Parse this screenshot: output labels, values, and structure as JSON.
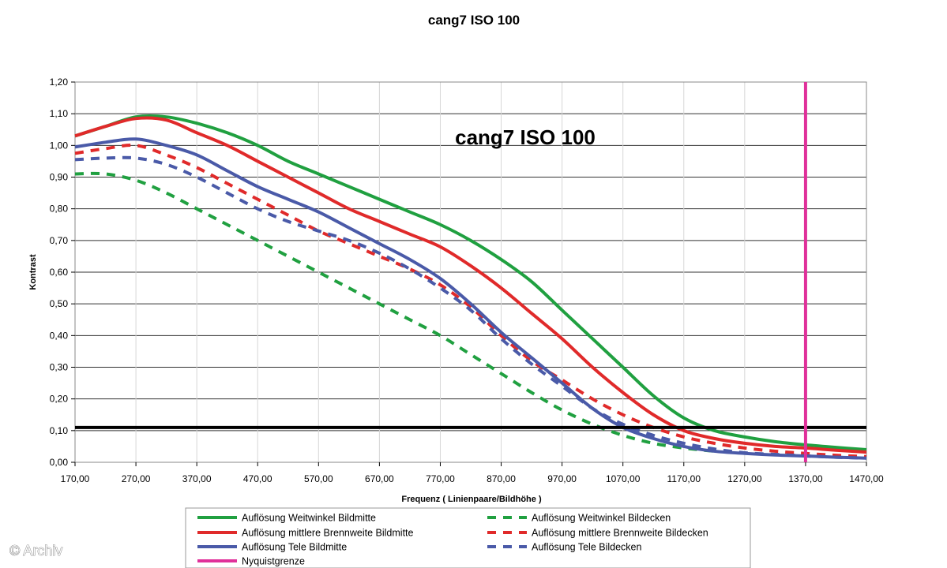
{
  "chart_data": {
    "type": "line",
    "title": "cang7 ISO 100",
    "inner_title": "cang7 ISO 100",
    "xlabel": "Frequenz ( Linienpaare/Bildhöhe )",
    "ylabel": "Kontrast",
    "xlim": [
      170,
      1470
    ],
    "ylim": [
      0,
      1.2
    ],
    "x_ticks": [
      "170,00",
      "270,00",
      "370,00",
      "470,00",
      "570,00",
      "670,00",
      "770,00",
      "870,00",
      "970,00",
      "1070,00",
      "1170,00",
      "1270,00",
      "1370,00",
      "1470,00"
    ],
    "y_ticks": [
      "0,00",
      "0,10",
      "0,20",
      "0,30",
      "0,40",
      "0,50",
      "0,60",
      "0,70",
      "0,80",
      "0,90",
      "1,00",
      "1,10",
      "1,20"
    ],
    "grid": "horizontal",
    "legend_position": "bottom",
    "threshold": {
      "y": 0.11,
      "color": "#000000"
    },
    "nyquist": {
      "name": "Nyquistgrenze",
      "x": 1370,
      "color": "#e0309a"
    },
    "series": [
      {
        "name": "Auflösung Weitwinkel Bildmitte",
        "color": "#20a040",
        "dash": false,
        "x": [
          170,
          220,
          270,
          320,
          370,
          420,
          470,
          520,
          570,
          620,
          670,
          720,
          770,
          820,
          870,
          920,
          970,
          1020,
          1070,
          1120,
          1170,
          1220,
          1270,
          1320,
          1370,
          1420,
          1470
        ],
        "y": [
          1.03,
          1.06,
          1.09,
          1.09,
          1.07,
          1.04,
          1.0,
          0.95,
          0.91,
          0.87,
          0.83,
          0.79,
          0.75,
          0.7,
          0.64,
          0.57,
          0.48,
          0.39,
          0.3,
          0.21,
          0.14,
          0.1,
          0.08,
          0.065,
          0.055,
          0.047,
          0.04
        ]
      },
      {
        "name": "Auflösung Weitwinkel Bildecken",
        "color": "#20a040",
        "dash": true,
        "x": [
          170,
          220,
          270,
          320,
          370,
          420,
          470,
          520,
          570,
          620,
          670,
          720,
          770,
          820,
          870,
          920,
          970,
          1020,
          1070,
          1120,
          1170,
          1220
        ],
        "y": [
          0.91,
          0.91,
          0.89,
          0.85,
          0.8,
          0.75,
          0.7,
          0.65,
          0.6,
          0.55,
          0.5,
          0.45,
          0.4,
          0.34,
          0.28,
          0.22,
          0.165,
          0.12,
          0.085,
          0.06,
          0.045,
          0.035
        ]
      },
      {
        "name": "Auflösung mittlere Brennweite Bildmitte",
        "color": "#e02a2a",
        "dash": false,
        "x": [
          170,
          220,
          270,
          320,
          370,
          420,
          470,
          520,
          570,
          620,
          670,
          720,
          770,
          820,
          870,
          920,
          970,
          1020,
          1070,
          1120,
          1170,
          1220,
          1270,
          1320,
          1370,
          1420,
          1470
        ],
        "y": [
          1.03,
          1.06,
          1.085,
          1.08,
          1.04,
          1.0,
          0.95,
          0.9,
          0.85,
          0.8,
          0.76,
          0.72,
          0.68,
          0.62,
          0.55,
          0.47,
          0.39,
          0.3,
          0.22,
          0.15,
          0.1,
          0.075,
          0.06,
          0.05,
          0.045,
          0.038,
          0.032
        ]
      },
      {
        "name": "Auflösung mittlere Brennweite Bildecken",
        "color": "#e02a2a",
        "dash": true,
        "x": [
          170,
          220,
          270,
          320,
          370,
          420,
          470,
          520,
          570,
          620,
          670,
          720,
          770,
          820,
          870,
          920,
          970,
          1020,
          1070,
          1120,
          1170,
          1220,
          1270,
          1320,
          1370,
          1420,
          1470
        ],
        "y": [
          0.975,
          0.99,
          1.0,
          0.97,
          0.93,
          0.88,
          0.83,
          0.78,
          0.73,
          0.69,
          0.65,
          0.61,
          0.56,
          0.49,
          0.4,
          0.32,
          0.26,
          0.2,
          0.15,
          0.11,
          0.08,
          0.06,
          0.045,
          0.035,
          0.028,
          0.022,
          0.018
        ]
      },
      {
        "name": "Auflösung Tele Bildmitte",
        "color": "#4a5aa8",
        "dash": false,
        "x": [
          170,
          220,
          270,
          320,
          370,
          420,
          470,
          520,
          570,
          620,
          670,
          720,
          770,
          820,
          870,
          920,
          970,
          1020,
          1070,
          1120,
          1170,
          1220,
          1270,
          1320,
          1370,
          1420,
          1470
        ],
        "y": [
          0.995,
          1.01,
          1.02,
          1.0,
          0.97,
          0.92,
          0.87,
          0.83,
          0.79,
          0.74,
          0.69,
          0.64,
          0.58,
          0.5,
          0.41,
          0.33,
          0.25,
          0.17,
          0.11,
          0.075,
          0.05,
          0.035,
          0.028,
          0.023,
          0.02,
          0.016,
          0.013
        ]
      },
      {
        "name": "Auflösung Tele Bildecken",
        "color": "#4a5aa8",
        "dash": true,
        "x": [
          170,
          220,
          270,
          320,
          370,
          420,
          470,
          520,
          570,
          620,
          670,
          720,
          770,
          820,
          870,
          920,
          970,
          1020,
          1070,
          1120,
          1170,
          1220,
          1270,
          1320,
          1370,
          1420,
          1470
        ],
        "y": [
          0.955,
          0.96,
          0.96,
          0.94,
          0.9,
          0.85,
          0.8,
          0.76,
          0.73,
          0.7,
          0.66,
          0.61,
          0.55,
          0.48,
          0.39,
          0.31,
          0.24,
          0.17,
          0.12,
          0.085,
          0.06,
          0.042,
          0.03,
          0.025,
          0.02,
          0.016,
          0.013
        ]
      }
    ]
  },
  "legend": {
    "rows": [
      [
        "Auflösung Weitwinkel Bildmitte",
        "Auflösung Weitwinkel Bildecken"
      ],
      [
        "Auflösung mittlere Brennweite Bildmitte",
        "Auflösung mittlere Brennweite Bildecken"
      ],
      [
        "Auflösung Tele Bildmitte",
        "Auflösung Tele Bildecken"
      ],
      [
        "Nyquistgrenze",
        ""
      ]
    ],
    "colors": [
      [
        "#20a040",
        "#20a040"
      ],
      [
        "#e02a2a",
        "#e02a2a"
      ],
      [
        "#4a5aa8",
        "#4a5aa8"
      ],
      [
        "#e0309a",
        ""
      ]
    ],
    "dashed": [
      [
        false,
        true
      ],
      [
        false,
        true
      ],
      [
        false,
        true
      ],
      [
        false,
        false
      ]
    ]
  },
  "copyright": "© Archiv"
}
